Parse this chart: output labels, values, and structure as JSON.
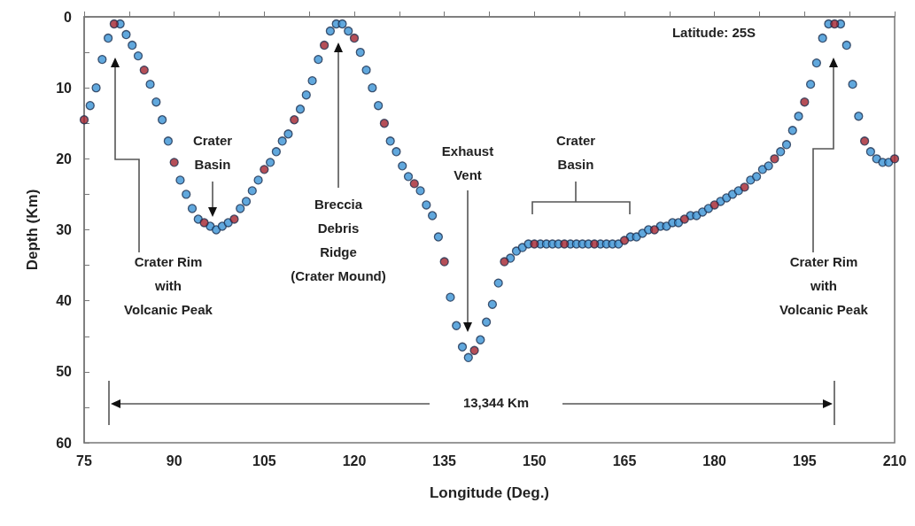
{
  "chart_data": {
    "type": "scatter",
    "xlabel": "Longitude (Deg.)",
    "ylabel": "Depth (Km)",
    "xlim": [
      75,
      210
    ],
    "xticks": [
      75,
      {
        "value": 82.5,
        "label": null
      },
      90,
      {
        "value": 97.5,
        "label": null
      },
      105,
      {
        "value": 112.5,
        "label": null
      },
      120,
      {
        "value": 127.5,
        "label": null
      },
      135,
      {
        "value": 142.5,
        "label": null
      },
      150,
      {
        "value": 157.5,
        "label": null
      },
      165,
      {
        "value": 172.5,
        "label": null
      },
      180,
      {
        "value": 187.5,
        "label": null
      },
      195,
      {
        "value": 202.5,
        "label": null
      },
      210
    ],
    "ylim": [
      60,
      0
    ],
    "yticks": [
      0,
      {
        "value": 5,
        "label": null
      },
      10,
      {
        "value": 15,
        "label": null
      },
      20,
      {
        "value": 25,
        "label": null
      },
      30,
      {
        "value": 35,
        "label": null
      },
      40,
      {
        "value": 45,
        "label": null
      },
      50,
      {
        "value": 55,
        "label": null
      },
      60
    ],
    "marker": "circle",
    "series": [
      {
        "color": "#3a92d4",
        "x": [
          76,
          77,
          78,
          79,
          81,
          82,
          83,
          84,
          86,
          87,
          88,
          89,
          91,
          92,
          93,
          94,
          96,
          97,
          98,
          99,
          101,
          102,
          103,
          104,
          106,
          107,
          108,
          109,
          111,
          112,
          113,
          114,
          116,
          117,
          118,
          119,
          121,
          122,
          123,
          124,
          126,
          127,
          128,
          129,
          131,
          132,
          133,
          134,
          136,
          137,
          138,
          139,
          141,
          142,
          143,
          144,
          146,
          147,
          148,
          149,
          151,
          152,
          153,
          154,
          156,
          157,
          158,
          159,
          161,
          162,
          163,
          164,
          166,
          167,
          168,
          169,
          171,
          172,
          173,
          174,
          176,
          177,
          178,
          179,
          181,
          182,
          183,
          184,
          186,
          187,
          188,
          189,
          191,
          192,
          193,
          194,
          196,
          197,
          198,
          199,
          201,
          202,
          203,
          204,
          206,
          207,
          208,
          209
        ],
        "values": [
          12.5,
          10,
          6,
          3,
          1,
          2.5,
          4,
          5.5,
          9.5,
          12,
          14.5,
          17.5,
          23,
          25,
          27,
          28.5,
          29.5,
          30,
          29.5,
          29,
          27,
          26,
          24.5,
          23,
          20.5,
          19,
          17.5,
          16.5,
          13,
          11,
          9,
          6,
          2,
          1,
          1,
          2,
          5,
          7.5,
          10,
          12.5,
          17.5,
          19,
          21,
          22.5,
          24.5,
          26.5,
          28,
          31,
          39.5,
          43.5,
          46.5,
          48,
          45.5,
          43,
          40.5,
          37.5,
          34,
          33,
          32.5,
          32,
          32,
          32,
          32,
          32,
          32,
          32,
          32,
          32,
          32,
          32,
          32,
          32,
          31,
          31,
          30.5,
          30,
          29.5,
          29.5,
          29,
          29,
          28,
          28,
          27.5,
          27,
          26,
          25.5,
          25,
          24.5,
          23,
          22.5,
          21.5,
          21,
          19,
          18,
          16,
          14,
          9.5,
          6.5,
          3,
          1,
          1,
          4,
          9.5,
          14,
          19,
          20,
          20.5,
          20.5
        ]
      },
      {
        "color": "#a3232e",
        "x": [
          75,
          80,
          85,
          90,
          95,
          100,
          105,
          110,
          115,
          120,
          125,
          130,
          135,
          140,
          145,
          150,
          155,
          160,
          165,
          170,
          175,
          180,
          185,
          190,
          195,
          200,
          205,
          210
        ],
        "values": [
          14.5,
          1,
          7.5,
          20.5,
          29,
          28.5,
          21.5,
          14.5,
          4,
          3,
          15,
          23.5,
          34.5,
          47,
          34.5,
          32,
          32,
          32,
          31.5,
          30,
          28.5,
          26.5,
          24,
          20,
          12,
          1,
          17.5,
          20
        ]
      }
    ],
    "annotations": [
      "Latitude: 25S",
      "Crater Rim\nwith\nVolcanic Peak",
      "Crater\nBasin",
      "Breccia\nDebris\nRidge\n(Crater Mound)",
      "Exhaust\nVent",
      "Crater\nBasin",
      "Crater Rim\nwith\nVolcanic Peak",
      "13,344 Km"
    ]
  }
}
